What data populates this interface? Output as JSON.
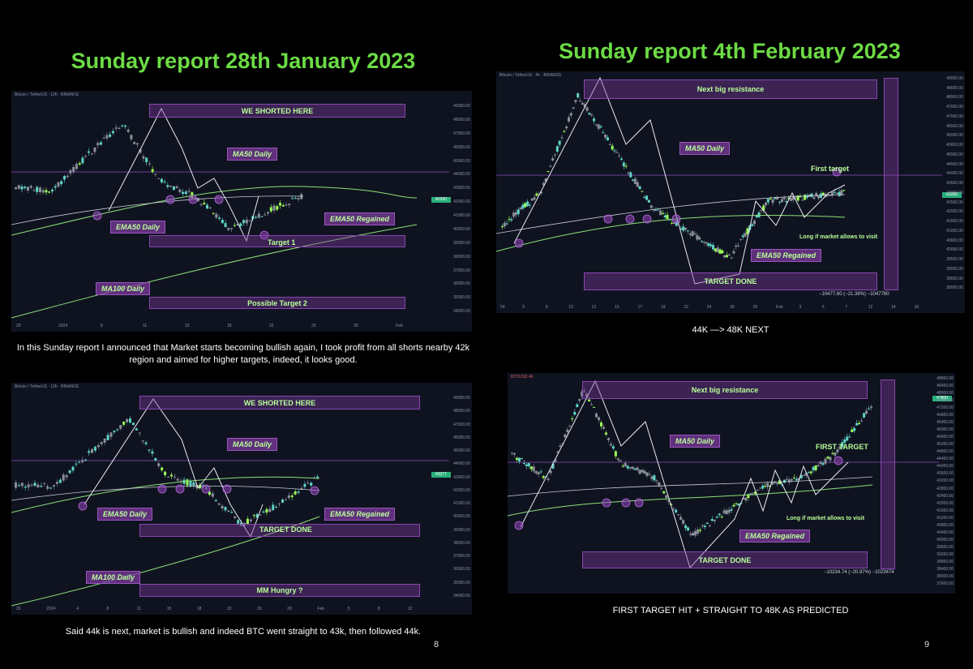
{
  "titles": {
    "left": "Sunday report 28th January 2023",
    "right": "Sunday report 4th February 2023"
  },
  "panel1": {
    "header": "Bitcoin / TetherUS · 12h · BINANCE",
    "boxes": [
      "WE SHORTED HERE",
      "Possible Target 2"
    ],
    "labels": [
      "MA50 Daily",
      "EMA50 Daily",
      "EMA50 Regained",
      "Target 1",
      "MA100 Daily"
    ],
    "price_tag": "42200",
    "x_ticks": [
      "29",
      "2024",
      "8",
      "11",
      "15",
      "18",
      "22",
      "25",
      "29",
      "Feb"
    ],
    "y_ticks": [
      "49000.00",
      "48000.00",
      "47000.00",
      "46000.00",
      "45000.00",
      "44000.00",
      "43000.00",
      "42000.00",
      "41000.00",
      "40000.00",
      "39000.00",
      "38000.00",
      "37000.00",
      "36000.00",
      "35000.00",
      "34000.00"
    ]
  },
  "caption1": "In this Sunday report I announced that Market starts becoming bullish again, I took profit from all shorts nearby 42k region and aimed for higher targets, indeed, it looks good.",
  "panel2": {
    "header": "Bitcoin / TetherUS · 12h · BINANCE",
    "boxes": [
      "WE SHORTED HERE",
      "MM Hungry ?"
    ],
    "labels": [
      "MA50 Daily",
      "EMA50 Daily",
      "EMA50 Regained",
      "TARGET DONE",
      "MA100 Daily"
    ],
    "price_tag": "43277",
    "x_ticks": [
      "29",
      "2024",
      "4",
      "8",
      "11",
      "15",
      "18",
      "22",
      "25",
      "29",
      "Feb",
      "5",
      "8",
      "12"
    ],
    "y_ticks": [
      "49000.00",
      "48000.00",
      "47000.00",
      "46000.00",
      "45000.00",
      "44000.00",
      "43000.00",
      "42000.00",
      "41000.00",
      "40000.00",
      "39000.00",
      "38000.00",
      "37000.00",
      "36000.00",
      "35000.00",
      "34000.00"
    ]
  },
  "caption2": "Said 44k is next, market is bullish and indeed BTC went straight to 43k, then followed 44k.",
  "panel3": {
    "header": "Bitcoin / TetherUS · 4h · BINANCE",
    "boxes": [
      "Next big resistance",
      "TARGET DONE"
    ],
    "labels": [
      "MA50 Daily",
      "First target",
      "EMA50 Regained",
      "Long if market allows to visit"
    ],
    "price_tag": "43000",
    "measure": "−10477.60 (−21.38%) −1047760",
    "x_ticks": [
      "'24",
      "5",
      "8",
      "10",
      "12",
      "15",
      "17",
      "19",
      "22",
      "24",
      "26",
      "29",
      "Feb",
      "3",
      "5",
      "7",
      "12",
      "14",
      "16"
    ],
    "y_ticks": [
      "49000.00",
      "48600.00",
      "48000.00",
      "47600.00",
      "47000.00",
      "46500.00",
      "46000.00",
      "45600.00",
      "45000.00",
      "44500.00",
      "44000.00",
      "43600.00",
      "43000.00",
      "42500.00",
      "42000.00",
      "41600.00",
      "41000.00",
      "40600.00",
      "40000.00",
      "39500.00",
      "39000.00",
      "38600.00",
      "38000.00"
    ]
  },
  "caption3": "44K —> 48K NEXT",
  "panel4": {
    "header": "Bitcoin / TetherUS · 4h · BINANCE",
    "boxes": [
      "Next big resistance",
      "TARGET DONE"
    ],
    "labels": [
      "MA50 Daily",
      "FIRST TARGET",
      "EMA50 Regained",
      "Long if market allows to visit"
    ],
    "price_tag": "47800",
    "measure": "−10234.74 (−20.97%) −1023474",
    "y_ticks": [
      "48800.00",
      "48400.00",
      "48000.00",
      "47600.00",
      "47200.00",
      "46800.00",
      "46400.00",
      "46000.00",
      "45600.00",
      "45200.00",
      "44800.00",
      "44400.00",
      "44000.00",
      "43600.00",
      "43200.00",
      "42800.00",
      "42400.00",
      "42000.00",
      "41600.00",
      "41200.00",
      "40800.00",
      "40400.00",
      "40000.00",
      "39600.00",
      "39200.00",
      "38800.00",
      "38400.00",
      "38000.00",
      "37600.00"
    ]
  },
  "caption4": "FIRST TARGET HIT + STRAIGHT TO 48K AS PREDICTED",
  "page_numbers": {
    "left": "8",
    "right": "9"
  },
  "colors": {
    "title": "#6cdb45",
    "box": "#803ca0",
    "label_text": "#b7ff98",
    "bull": "#5fd3c8",
    "bull_alt": "#9cff57",
    "bear": "#8a8f9a",
    "chart_bg": "#0f1320"
  }
}
